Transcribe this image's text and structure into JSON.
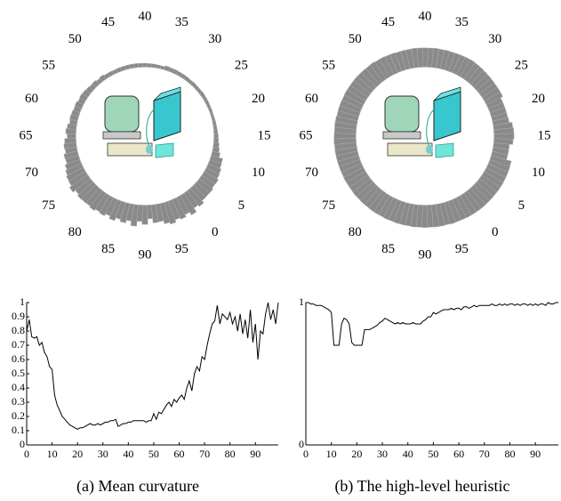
{
  "chart_data": [
    {
      "type": "line",
      "title": "(a)  Mean curvature",
      "color": "#000000",
      "polar_color": "#8a8a8a",
      "x": [
        0,
        1,
        2,
        3,
        4,
        5,
        6,
        7,
        8,
        9,
        10,
        11,
        12,
        13,
        14,
        15,
        16,
        17,
        18,
        19,
        20,
        21,
        22,
        23,
        24,
        25,
        26,
        27,
        28,
        29,
        30,
        31,
        32,
        33,
        34,
        35,
        36,
        37,
        38,
        39,
        40,
        41,
        42,
        43,
        44,
        45,
        46,
        47,
        48,
        49,
        50,
        51,
        52,
        53,
        54,
        55,
        56,
        57,
        58,
        59,
        60,
        61,
        62,
        63,
        64,
        65,
        66,
        67,
        68,
        69,
        70,
        71,
        72,
        73,
        74,
        75,
        76,
        77,
        78,
        79,
        80,
        81,
        82,
        83,
        84,
        85,
        86,
        87,
        88,
        89,
        90,
        91,
        92,
        93,
        94,
        95,
        96,
        97,
        98,
        99
      ],
      "values": [
        0.8,
        0.88,
        0.76,
        0.75,
        0.76,
        0.7,
        0.72,
        0.65,
        0.62,
        0.55,
        0.53,
        0.35,
        0.28,
        0.24,
        0.2,
        0.18,
        0.16,
        0.14,
        0.13,
        0.12,
        0.11,
        0.12,
        0.12,
        0.13,
        0.14,
        0.15,
        0.14,
        0.14,
        0.15,
        0.14,
        0.15,
        0.16,
        0.16,
        0.17,
        0.17,
        0.18,
        0.13,
        0.14,
        0.15,
        0.15,
        0.16,
        0.16,
        0.17,
        0.17,
        0.17,
        0.17,
        0.17,
        0.16,
        0.17,
        0.17,
        0.22,
        0.18,
        0.23,
        0.22,
        0.25,
        0.28,
        0.3,
        0.27,
        0.32,
        0.3,
        0.33,
        0.35,
        0.32,
        0.4,
        0.45,
        0.38,
        0.5,
        0.55,
        0.52,
        0.62,
        0.6,
        0.7,
        0.78,
        0.85,
        0.87,
        0.98,
        0.85,
        0.92,
        0.9,
        0.88,
        0.93,
        0.85,
        0.9,
        0.8,
        0.92,
        0.78,
        0.88,
        0.75,
        0.95,
        0.72,
        0.85,
        0.6,
        0.8,
        0.78,
        0.92,
        1.0,
        0.88,
        0.95,
        0.85,
        1.0
      ],
      "xlim": [
        0,
        99
      ],
      "ylim": [
        0,
        1
      ],
      "xticks": [
        0,
        10,
        20,
        30,
        40,
        50,
        60,
        70,
        80,
        90
      ],
      "yticks": [
        0,
        0.1,
        0.2,
        0.3,
        0.4,
        0.5,
        0.6,
        0.7,
        0.8,
        0.9,
        1
      ],
      "polar_ticks": [
        0,
        5,
        10,
        15,
        20,
        25,
        30,
        35,
        40,
        45,
        50,
        55,
        60,
        65,
        70,
        75,
        80,
        85,
        90,
        95
      ]
    },
    {
      "type": "line",
      "title": "(b)  The high-level heuristic",
      "color": "#000000",
      "polar_color": "#8a8a8a",
      "x": [
        0,
        1,
        2,
        3,
        4,
        5,
        6,
        7,
        8,
        9,
        10,
        11,
        12,
        13,
        14,
        15,
        16,
        17,
        18,
        19,
        20,
        21,
        22,
        23,
        24,
        25,
        26,
        27,
        28,
        29,
        30,
        31,
        32,
        33,
        34,
        35,
        36,
        37,
        38,
        39,
        40,
        41,
        42,
        43,
        44,
        45,
        46,
        47,
        48,
        49,
        50,
        51,
        52,
        53,
        54,
        55,
        56,
        57,
        58,
        59,
        60,
        61,
        62,
        63,
        64,
        65,
        66,
        67,
        68,
        69,
        70,
        71,
        72,
        73,
        74,
        75,
        76,
        77,
        78,
        79,
        80,
        81,
        82,
        83,
        84,
        85,
        86,
        87,
        88,
        89,
        90,
        91,
        92,
        93,
        94,
        95,
        96,
        97,
        98,
        99
      ],
      "values": [
        1,
        1,
        0.99,
        0.99,
        0.98,
        0.98,
        0.98,
        0.97,
        0.96,
        0.95,
        0.93,
        0.7,
        0.7,
        0.7,
        0.85,
        0.89,
        0.88,
        0.85,
        0.72,
        0.7,
        0.7,
        0.7,
        0.7,
        0.81,
        0.81,
        0.81,
        0.82,
        0.83,
        0.84,
        0.86,
        0.87,
        0.89,
        0.88,
        0.87,
        0.86,
        0.85,
        0.86,
        0.85,
        0.86,
        0.85,
        0.85,
        0.85,
        0.86,
        0.85,
        0.85,
        0.85,
        0.87,
        0.88,
        0.9,
        0.9,
        0.93,
        0.92,
        0.93,
        0.94,
        0.95,
        0.95,
        0.95,
        0.96,
        0.95,
        0.96,
        0.96,
        0.95,
        0.97,
        0.97,
        0.96,
        0.97,
        0.98,
        0.97,
        0.98,
        0.98,
        0.98,
        0.98,
        0.98,
        0.99,
        0.98,
        0.98,
        0.99,
        0.98,
        0.99,
        0.98,
        0.99,
        0.99,
        0.98,
        0.99,
        0.98,
        0.99,
        0.99,
        0.98,
        0.99,
        0.98,
        0.99,
        0.98,
        0.99,
        0.99,
        0.98,
        1.0,
        0.99,
        0.99,
        1.0,
        1.0
      ],
      "xlim": [
        0,
        99
      ],
      "ylim": [
        0,
        1
      ],
      "xticks": [
        0,
        10,
        20,
        30,
        40,
        50,
        60,
        70,
        80,
        90
      ],
      "yticks": [
        0,
        1
      ],
      "polar_ticks": [
        0,
        5,
        10,
        15,
        20,
        25,
        30,
        35,
        40,
        45,
        50,
        55,
        60,
        65,
        70,
        75,
        80,
        85,
        90,
        95
      ]
    }
  ]
}
